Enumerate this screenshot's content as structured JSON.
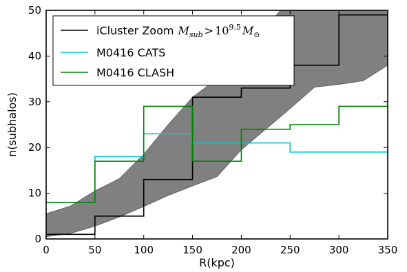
{
  "chart_data": {
    "type": "line",
    "xlabel": "R(kpc)",
    "ylabel": "n(subhalos)",
    "xlim": [
      0,
      350
    ],
    "ylim": [
      0,
      50
    ],
    "x_ticks": [
      0,
      50,
      100,
      150,
      200,
      250,
      300,
      350
    ],
    "y_ticks": [
      0,
      10,
      20,
      30,
      40,
      50
    ],
    "x_tick_labels": [
      "0",
      "50",
      "100",
      "150",
      "200",
      "250",
      "300",
      "350"
    ],
    "y_tick_labels": [
      "0",
      "10",
      "20",
      "30",
      "40",
      "50"
    ],
    "grid": false,
    "legend_position": "top-left",
    "band": {
      "color": "#808080",
      "upper": [
        [
          0,
          5.5
        ],
        [
          25,
          7.2
        ],
        [
          50,
          10.5
        ],
        [
          75,
          13.2
        ],
        [
          100,
          18.5
        ],
        [
          125,
          25
        ],
        [
          150,
          31
        ],
        [
          175,
          35
        ],
        [
          200,
          40
        ],
        [
          225,
          46
        ],
        [
          240,
          50
        ],
        [
          350,
          50
        ]
      ],
      "lower": [
        [
          0,
          0.5
        ],
        [
          25,
          1.2
        ],
        [
          50,
          2.8
        ],
        [
          75,
          4.8
        ],
        [
          100,
          7.1
        ],
        [
          125,
          9.5
        ],
        [
          150,
          11.6
        ],
        [
          175,
          13.6
        ],
        [
          200,
          19.5
        ],
        [
          225,
          24
        ],
        [
          250,
          28.5
        ],
        [
          275,
          33.2
        ],
        [
          300,
          33.8
        ],
        [
          325,
          34.6
        ],
        [
          350,
          38
        ]
      ]
    },
    "series": [
      {
        "name": "iCluster Zoom",
        "legend_math_base": "M",
        "legend_math_sub": "sub",
        "legend_math_op": ">",
        "legend_math_num": "10",
        "legend_math_exp": "9.5",
        "legend_math_unit": "M",
        "legend_math_unit_sub": "⊙",
        "color": "#000000",
        "style": "step",
        "x": [
          0,
          50,
          100,
          150,
          200,
          250,
          300,
          350
        ],
        "y": [
          1,
          5,
          13,
          31,
          33,
          38,
          49,
          49
        ]
      },
      {
        "name": "M0416 CATS",
        "color": "#00c8c8",
        "style": "step",
        "x": [
          0,
          50,
          100,
          150,
          200,
          250,
          300,
          350
        ],
        "y": [
          8,
          18,
          23,
          21,
          21,
          19,
          19,
          19
        ]
      },
      {
        "name": "M0416 CLASH",
        "color": "#008000",
        "style": "step",
        "x": [
          0,
          50,
          100,
          150,
          200,
          250,
          300,
          350
        ],
        "y": [
          8,
          17,
          29,
          17,
          24,
          25,
          29,
          29
        ]
      }
    ]
  }
}
